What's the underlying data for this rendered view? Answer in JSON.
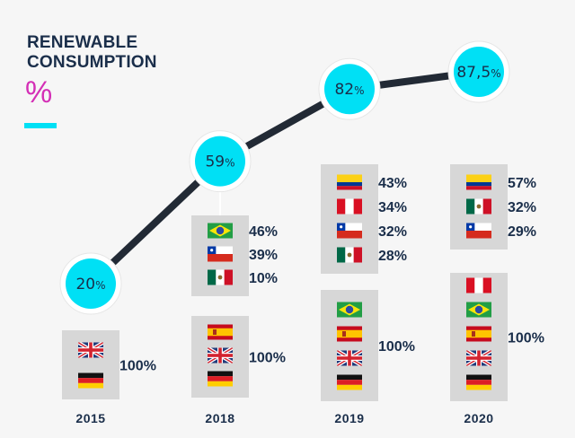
{
  "header": {
    "title_line1": "RENEWABLE",
    "title_line2": "CONSUMPTION",
    "unit_symbol": "%"
  },
  "colors": {
    "accent": "#00e0f5",
    "unit": "#d42fb6",
    "text": "#1a2e4a",
    "line": "#222a35",
    "box": "#d7d7d7"
  },
  "chart_data": {
    "type": "line",
    "x": [
      "2015",
      "2018",
      "2019",
      "2020"
    ],
    "values": [
      20,
      59,
      82,
      87.5
    ],
    "point_labels": [
      "20%",
      "59%",
      "82%",
      "87,5%"
    ],
    "groups": [
      {
        "year": "2015",
        "boxes": [
          {
            "entries": [
              {
                "flag": "uk-flag-icon"
              },
              {
                "flag": "germany-flag-icon"
              }
            ],
            "group_value": "100%"
          }
        ]
      },
      {
        "year": "2018",
        "boxes": [
          {
            "entries": [
              {
                "flag": "brazil-flag-icon",
                "value": "46%"
              },
              {
                "flag": "chile-flag-icon",
                "value": "39%"
              },
              {
                "flag": "mexico-flag-icon",
                "value": "10%"
              }
            ]
          },
          {
            "entries": [
              {
                "flag": "spain-flag-icon"
              },
              {
                "flag": "uk-flag-icon"
              },
              {
                "flag": "germany-flag-icon"
              }
            ],
            "group_value": "100%"
          }
        ]
      },
      {
        "year": "2019",
        "boxes": [
          {
            "entries": [
              {
                "flag": "colombia-flag-icon",
                "value": "43%"
              },
              {
                "flag": "peru-flag-icon",
                "value": "34%"
              },
              {
                "flag": "chile-flag-icon",
                "value": "32%"
              },
              {
                "flag": "mexico-flag-icon",
                "value": "28%"
              }
            ]
          },
          {
            "entries": [
              {
                "flag": "brazil-flag-icon"
              },
              {
                "flag": "spain-flag-icon"
              },
              {
                "flag": "uk-flag-icon"
              },
              {
                "flag": "germany-flag-icon"
              }
            ],
            "group_value": "100%"
          }
        ]
      },
      {
        "year": "2020",
        "boxes": [
          {
            "entries": [
              {
                "flag": "colombia-flag-icon",
                "value": "57%"
              },
              {
                "flag": "mexico-flag-icon",
                "value": "32%"
              },
              {
                "flag": "chile-flag-icon",
                "value": "29%"
              }
            ]
          },
          {
            "entries": [
              {
                "flag": "peru-flag-icon"
              },
              {
                "flag": "brazil-flag-icon"
              },
              {
                "flag": "spain-flag-icon"
              },
              {
                "flag": "uk-flag-icon"
              },
              {
                "flag": "germany-flag-icon"
              }
            ],
            "group_value": "100%"
          }
        ]
      }
    ]
  }
}
